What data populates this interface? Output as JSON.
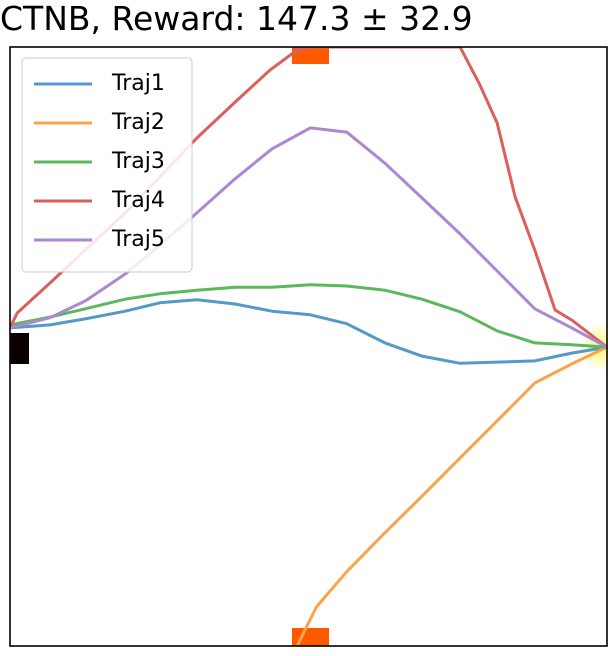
{
  "chart_data": {
    "type": "line",
    "title": "CTNB, Reward: 147.3 ± 32.9",
    "xlim": [
      0,
      100
    ],
    "ylim": [
      0,
      100
    ],
    "legend": "upper left",
    "series": [
      {
        "name": "Traj1",
        "color": "#5599c8",
        "x": [
          0,
          6.7,
          12.6,
          19.3,
          25.1,
          31.3,
          37.7,
          43.9,
          50.3,
          56.4,
          62.8,
          69.0,
          75.4,
          81.6,
          87.9,
          94.1,
          100
        ],
        "values": [
          53.1,
          53.6,
          54.6,
          55.9,
          57.3,
          57.8,
          57.1,
          55.9,
          55.3,
          53.8,
          50.6,
          48.4,
          47.2,
          47.4,
          47.6,
          48.9,
          49.9
        ]
      },
      {
        "name": "Traj2",
        "color": "#fda24a",
        "x": [
          48.1,
          51.3,
          56.4,
          62.8,
          69.0,
          75.4,
          81.6,
          87.9,
          94.1,
          100
        ],
        "values": [
          0,
          6.5,
          12.4,
          18.9,
          25.0,
          31.4,
          37.6,
          43.9,
          47.1,
          49.9
        ]
      },
      {
        "name": "Traj3",
        "color": "#5cb85c",
        "x": [
          0,
          6.7,
          12.6,
          19.3,
          25.1,
          31.3,
          37.7,
          43.9,
          50.3,
          56.4,
          62.8,
          69.0,
          75.4,
          81.6,
          87.9,
          94.1,
          100
        ],
        "values": [
          53.6,
          54.9,
          56.3,
          57.9,
          58.8,
          59.4,
          59.9,
          59.9,
          60.3,
          60.1,
          59.4,
          57.9,
          55.8,
          52.6,
          50.6,
          50.3,
          49.9
        ]
      },
      {
        "name": "Traj4",
        "color": "#d9605e",
        "x": [
          0,
          1.2,
          6.7,
          12.6,
          19.3,
          25.1,
          31.3,
          37.7,
          43.6,
          48.1,
          50.3,
          75.4,
          78.7,
          81.6,
          84.6,
          87.9,
          91.3,
          94.1,
          100
        ],
        "values": [
          53.1,
          55.6,
          60.6,
          66.1,
          72.3,
          78.3,
          84.8,
          90.8,
          96.2,
          99.5,
          100,
          100,
          93.7,
          87.3,
          75.0,
          66.1,
          56.1,
          54.4,
          49.9
        ]
      },
      {
        "name": "Traj5",
        "color": "#ab88cf",
        "x": [
          0,
          6.7,
          12.6,
          19.3,
          25.1,
          31.3,
          37.7,
          43.9,
          50.3,
          56.4,
          62.8,
          69.0,
          75.4,
          81.6,
          87.9,
          94.1,
          100
        ],
        "values": [
          53.1,
          54.8,
          57.6,
          62.1,
          66.9,
          72.3,
          78.0,
          83.0,
          86.5,
          85.8,
          80.6,
          74.8,
          68.8,
          62.6,
          56.3,
          53.1,
          49.9
        ]
      }
    ]
  }
}
